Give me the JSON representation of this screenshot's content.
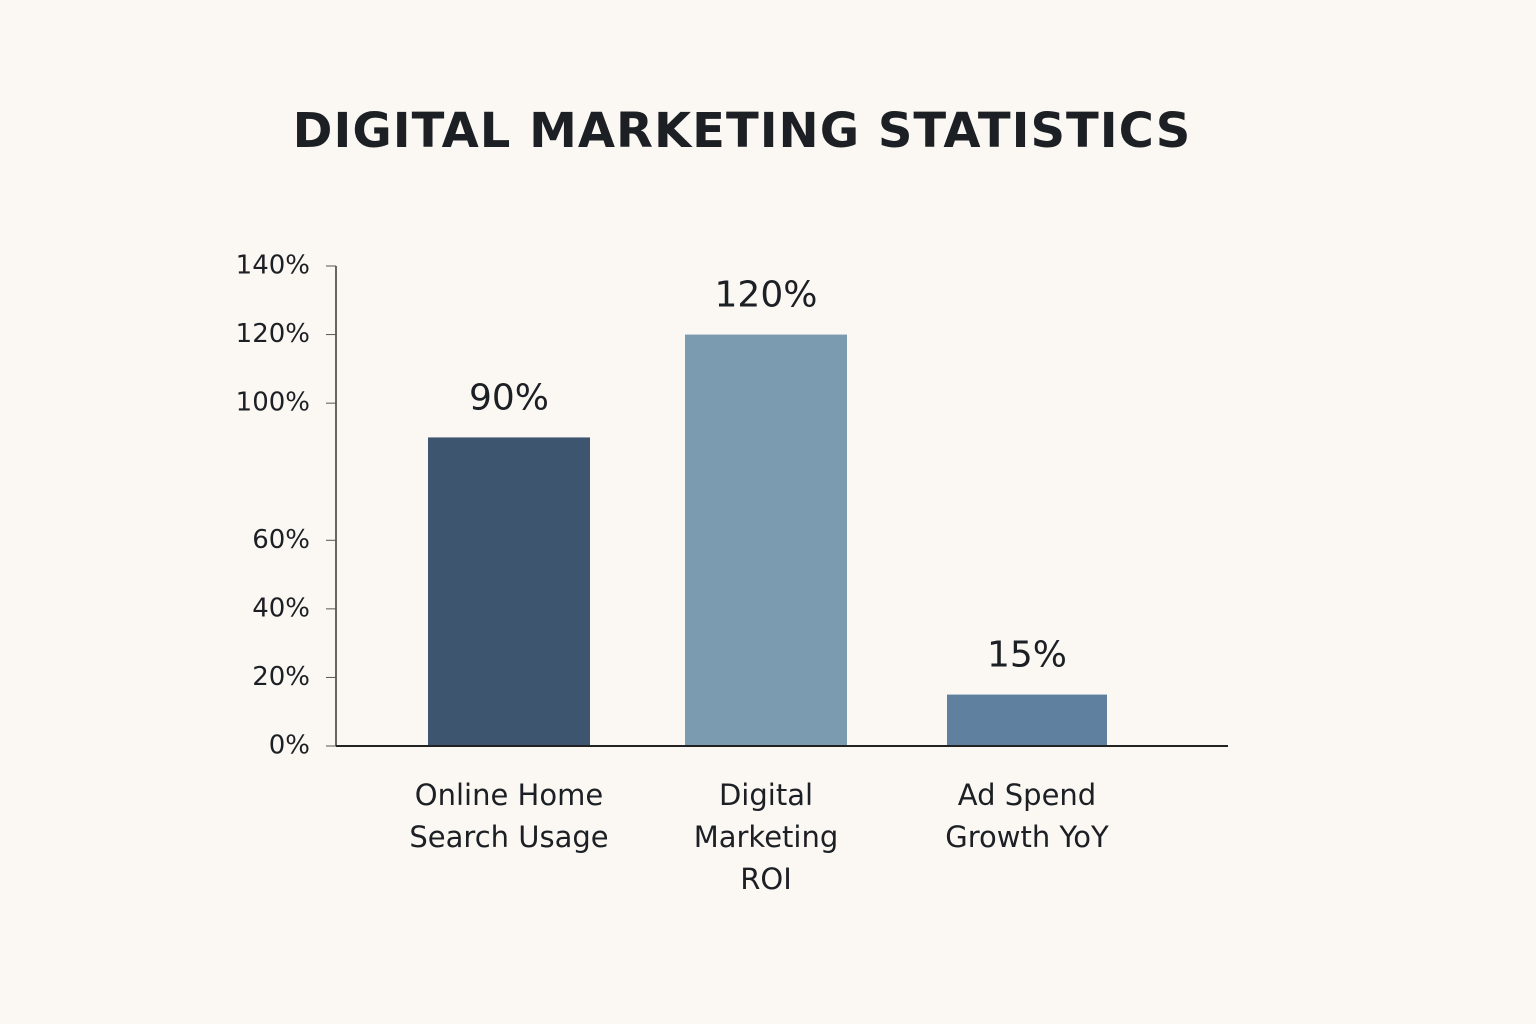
{
  "chart_data": {
    "type": "bar",
    "title": "DIGITAL MARKETING STATISTICS",
    "categories": [
      "Online Home Search Usage",
      "Digital Marketing ROI",
      "Ad Spend Growth YoY"
    ],
    "values": [
      90,
      120,
      15
    ],
    "value_labels": [
      "90%",
      "120%",
      "15%"
    ],
    "colors": [
      "#3d556f",
      "#7b9bb1",
      "#5f809f"
    ],
    "ylim": [
      0,
      140
    ],
    "yticks": [
      {
        "value": 0,
        "label": "0%"
      },
      {
        "value": 20,
        "label": "20%"
      },
      {
        "value": 40,
        "label": "40%"
      },
      {
        "value": 60,
        "label": "60%"
      },
      {
        "value": 100,
        "label": "100%"
      },
      {
        "value": 120,
        "label": "120%"
      },
      {
        "value": 140,
        "label": "140%"
      }
    ],
    "grid": false
  }
}
